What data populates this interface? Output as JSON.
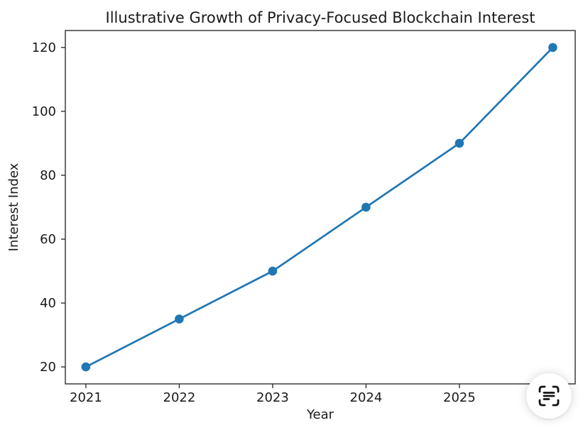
{
  "chart_data": {
    "type": "line",
    "title": "Illustrative Growth of Privacy-Focused Blockchain Interest",
    "xlabel": "Year",
    "ylabel": "Interest Index",
    "x": [
      2021,
      2022,
      2023,
      2024,
      2025,
      2026
    ],
    "y": [
      20,
      35,
      50,
      70,
      90,
      120
    ],
    "x_ticks": [
      2021,
      2022,
      2023,
      2024,
      2025,
      2026
    ],
    "y_ticks": [
      20,
      40,
      60,
      80,
      100,
      120
    ],
    "xlim": [
      2020.78,
      2026.24
    ],
    "ylim": [
      14.7,
      125.3
    ],
    "grid": false,
    "legend": "none",
    "line_color": "#1f77b4",
    "marker": "circle",
    "marker_color": "#1f77b4",
    "axis_color": "#2e2e2e",
    "text_color": "#1a1a1a",
    "background": "#ffffff"
  },
  "overlay": {
    "live_text_button": {
      "icon": "live-text-scan-icon",
      "icon_color": "#141414",
      "background": "#ffffff"
    }
  }
}
